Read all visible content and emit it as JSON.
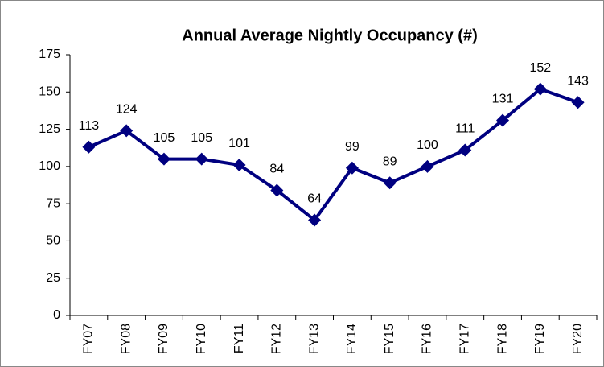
{
  "chart_data": {
    "type": "line",
    "title": "Annual Average Nightly Occupancy (#)",
    "categories": [
      "FY07",
      "FY08",
      "FY09",
      "FY10",
      "FY11",
      "FY12",
      "FY13",
      "FY14",
      "FY15",
      "FY16",
      "FY17",
      "FY18",
      "FY19",
      "FY20"
    ],
    "values": [
      113,
      124,
      105,
      105,
      101,
      84,
      64,
      99,
      89,
      100,
      111,
      131,
      152,
      143
    ],
    "color": "#000080",
    "ylim": [
      0,
      175
    ],
    "yticks": [
      0,
      25,
      50,
      75,
      100,
      125,
      150,
      175
    ],
    "grid": false
  }
}
